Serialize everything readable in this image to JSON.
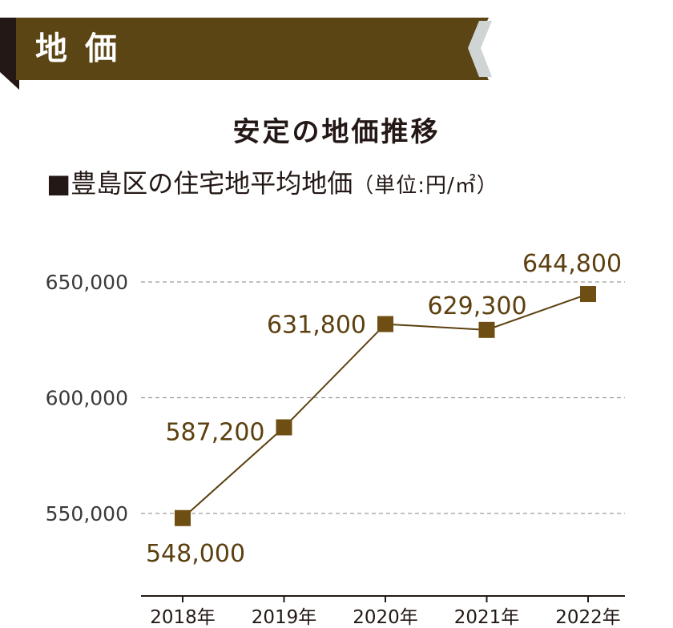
{
  "header": {
    "banner_title": "地価"
  },
  "chart_data": {
    "type": "line",
    "title": "安定の地価推移",
    "subtitle": "■豊島区の住宅地平均地価",
    "unit_note": "（単位:円/㎡）",
    "categories": [
      "2018年",
      "2019年",
      "2020年",
      "2021年",
      "2022年"
    ],
    "values": [
      548000,
      587200,
      631800,
      629300,
      644800
    ],
    "data_labels": [
      "548,000",
      "587,200",
      "631,800",
      "629,300",
      "644,800"
    ],
    "y_ticks": [
      550000,
      600000,
      650000
    ],
    "y_tick_labels": [
      "550,000",
      "600,000",
      "650,000"
    ],
    "ylim": [
      550000,
      650000
    ],
    "grid": "horizontal dashed",
    "colors": {
      "banner": "#5c4515",
      "line": "#5c4010",
      "marker": "#6e4e12",
      "label": "#5c4010",
      "grid": "#9a9a9a",
      "axis": "#231815"
    }
  }
}
